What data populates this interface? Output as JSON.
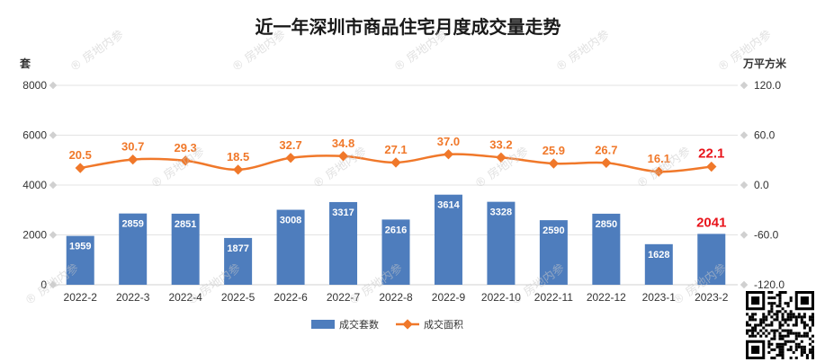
{
  "chart_data": {
    "type": "bar+line",
    "title": "近一年深圳市商品住宅月度成交量走势",
    "y_left_unit": "套",
    "y_right_unit": "万平方米",
    "categories": [
      "2022-2",
      "2022-3",
      "2022-4",
      "2022-5",
      "2022-6",
      "2022-7",
      "2022-8",
      "2022-9",
      "2022-10",
      "2022-11",
      "2022-12",
      "2023-1",
      "2023-2"
    ],
    "series": [
      {
        "name": "成交套数",
        "type": "bar",
        "axis": "left",
        "color": "#4e7dbd",
        "values": [
          1959,
          2859,
          2851,
          1877,
          3008,
          3317,
          2616,
          3614,
          3328,
          2590,
          2850,
          1628,
          2041
        ]
      },
      {
        "name": "成交面积",
        "type": "line",
        "axis": "right",
        "color": "#f0782a",
        "values": [
          20.5,
          30.7,
          29.3,
          18.5,
          32.7,
          34.8,
          27.1,
          37.0,
          33.2,
          25.9,
          26.7,
          16.1,
          22.1
        ]
      }
    ],
    "y_left": {
      "min": 0,
      "max": 8000,
      "ticks": [
        "0",
        "2000",
        "4000",
        "6000",
        "8000"
      ]
    },
    "y_right": {
      "min": -120,
      "max": 120,
      "ticks": [
        "-120.0",
        "-60.0",
        "0.0",
        "60.0",
        "120.0"
      ]
    },
    "highlight_color": "#e8141b",
    "grid": true,
    "legend_position": "bottom"
  },
  "watermark_text": "房地内参"
}
